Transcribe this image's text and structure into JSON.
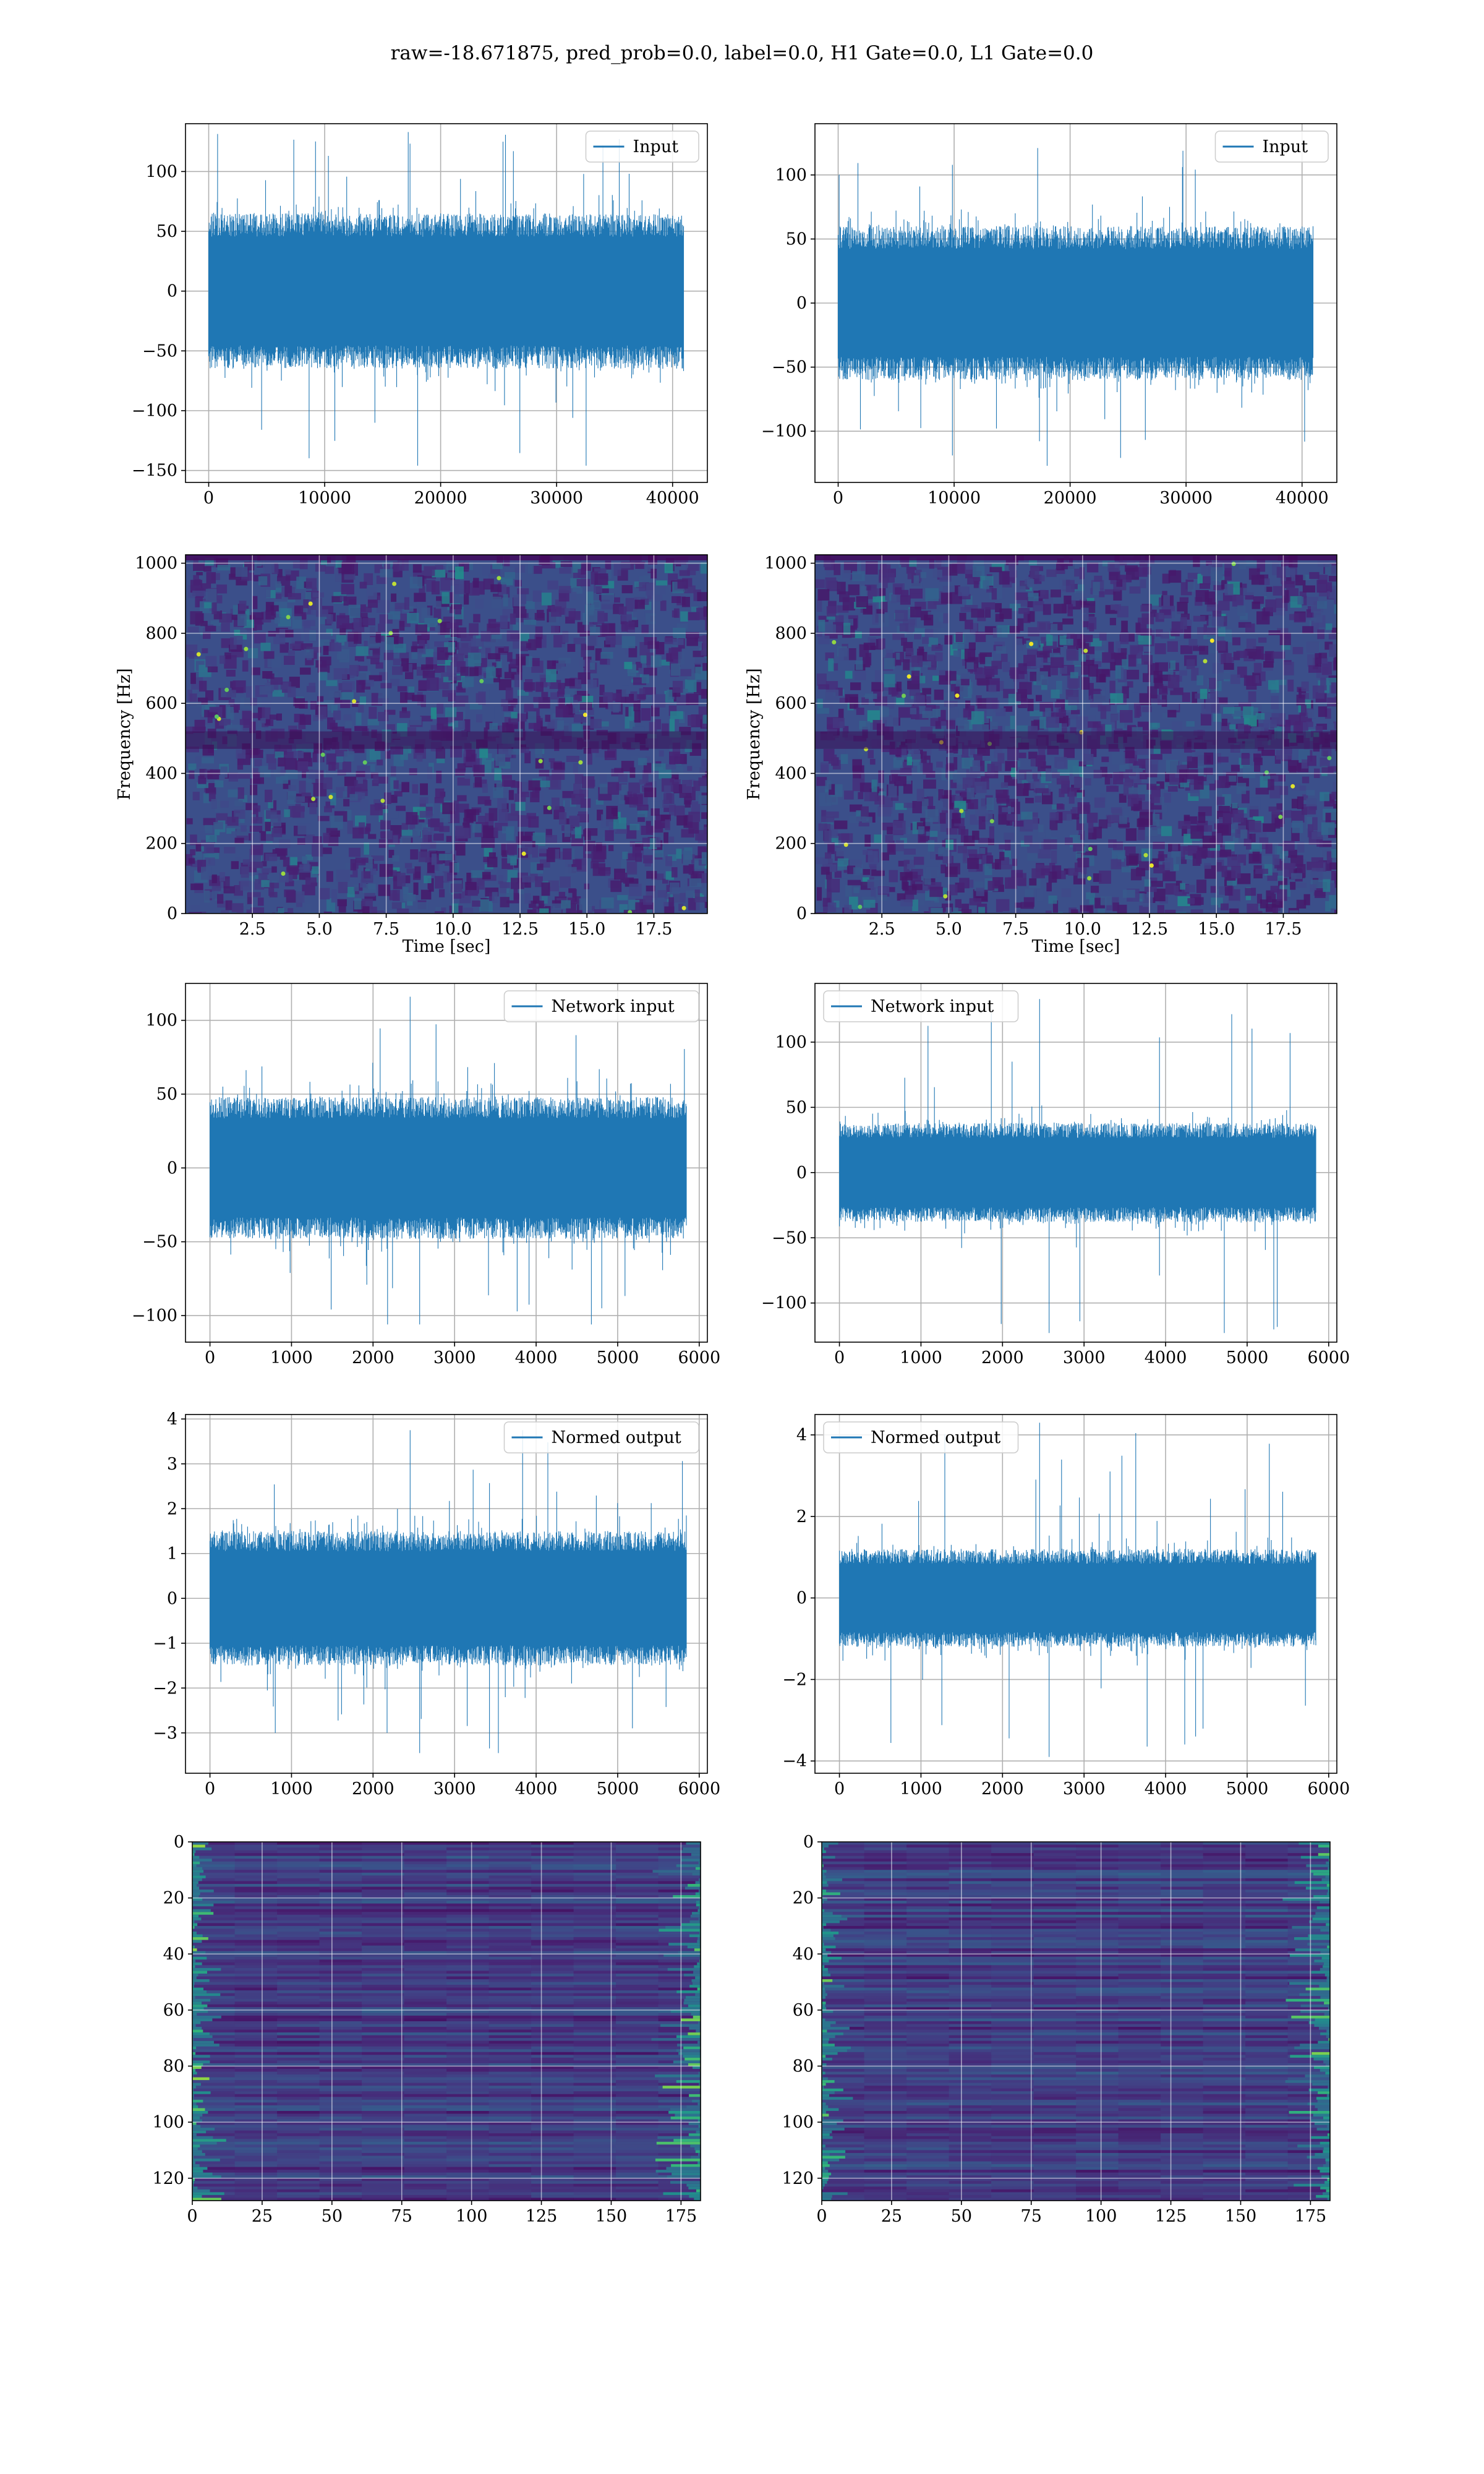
{
  "figure": {
    "title": "raw=-18.671875, pred_prob=0.0, label=0.0, H1 Gate=0.0, L1 Gate=0.0",
    "line_color": "#1f77b4",
    "colormap": "viridis"
  },
  "chart_data": [
    {
      "id": "h1-input",
      "type": "line",
      "series": [
        {
          "name": "Input",
          "color": "#1f77b4"
        }
      ],
      "legend": "top-right",
      "grid": true,
      "xlim": [
        -2000,
        43000
      ],
      "ylim": [
        -160,
        140
      ],
      "xticks": [
        0,
        10000,
        20000,
        30000,
        40000
      ],
      "yticks": [
        -150,
        -100,
        -50,
        0,
        50,
        100
      ],
      "yticklabels": [
        "−150",
        "−100",
        "−50",
        "0",
        "50",
        "100"
      ],
      "signal": {
        "n_samples": 40960,
        "x_end": 40960,
        "band": [
          -65,
          65
        ],
        "peak_max": 133,
        "trough_min": -146
      }
    },
    {
      "id": "l1-input",
      "type": "line",
      "series": [
        {
          "name": "Input",
          "color": "#1f77b4"
        }
      ],
      "legend": "top-right",
      "grid": true,
      "xlim": [
        -2000,
        43000
      ],
      "ylim": [
        -140,
        140
      ],
      "xticks": [
        0,
        10000,
        20000,
        30000,
        40000
      ],
      "yticks": [
        -100,
        -50,
        0,
        50,
        100
      ],
      "yticklabels": [
        "−100",
        "−50",
        "0",
        "50",
        "100"
      ],
      "signal": {
        "n_samples": 40960,
        "x_end": 40960,
        "band": [
          -60,
          60
        ],
        "peak_max": 121,
        "trough_min": -127
      }
    },
    {
      "id": "h1-spectrogram",
      "type": "heatmap",
      "xlabel": "Time [sec]",
      "ylabel": "Frequency [Hz]",
      "grid": true,
      "xlim": [
        0,
        19.5
      ],
      "ylim": [
        0,
        1024
      ],
      "xticks": [
        2.5,
        5.0,
        7.5,
        10.0,
        12.5,
        15.0,
        17.5
      ],
      "xticklabels": [
        "2.5",
        "5.0",
        "7.5",
        "10.0",
        "12.5",
        "15.0",
        "17.5"
      ],
      "yticks": [
        0,
        200,
        400,
        600,
        800,
        1000
      ],
      "yticklabels": [
        "0",
        "200",
        "400",
        "600",
        "800",
        "1000"
      ],
      "dark_band_hz": [
        470,
        520
      ]
    },
    {
      "id": "l1-spectrogram",
      "type": "heatmap",
      "xlabel": "Time [sec]",
      "ylabel": "Frequency [Hz]",
      "grid": true,
      "xlim": [
        0,
        19.5
      ],
      "ylim": [
        0,
        1024
      ],
      "xticks": [
        2.5,
        5.0,
        7.5,
        10.0,
        12.5,
        15.0,
        17.5
      ],
      "xticklabels": [
        "2.5",
        "5.0",
        "7.5",
        "10.0",
        "12.5",
        "15.0",
        "17.5"
      ],
      "yticks": [
        0,
        200,
        400,
        600,
        800,
        1000
      ],
      "yticklabels": [
        "0",
        "200",
        "400",
        "600",
        "800",
        "1000"
      ],
      "dark_band_hz": [
        470,
        520
      ]
    },
    {
      "id": "h1-network-input",
      "type": "line",
      "series": [
        {
          "name": "Network input",
          "color": "#1f77b4"
        }
      ],
      "legend": "top-right",
      "grid": true,
      "xlim": [
        -300,
        6100
      ],
      "ylim": [
        -118,
        125
      ],
      "xticks": [
        0,
        1000,
        2000,
        3000,
        4000,
        5000,
        6000
      ],
      "yticks": [
        -100,
        -50,
        0,
        50,
        100
      ],
      "yticklabels": [
        "−100",
        "−50",
        "0",
        "50",
        "100"
      ],
      "signal": {
        "n_samples": 5845,
        "x_end": 5845,
        "band": [
          -48,
          48
        ],
        "peak_max": 116,
        "trough_min": -106
      }
    },
    {
      "id": "l1-network-input",
      "type": "line",
      "series": [
        {
          "name": "Network input",
          "color": "#1f77b4"
        }
      ],
      "legend": "top-left",
      "grid": true,
      "xlim": [
        -300,
        6100
      ],
      "ylim": [
        -130,
        145
      ],
      "xticks": [
        0,
        1000,
        2000,
        3000,
        4000,
        5000,
        6000
      ],
      "yticks": [
        -100,
        -50,
        0,
        50,
        100
      ],
      "yticklabels": [
        "−100",
        "−50",
        "0",
        "50",
        "100"
      ],
      "signal": {
        "n_samples": 5845,
        "x_end": 5845,
        "band": [
          -38,
          38
        ],
        "peak_max": 133,
        "trough_min": -123
      }
    },
    {
      "id": "h1-normed-output",
      "type": "line",
      "series": [
        {
          "name": "Normed output",
          "color": "#1f77b4"
        }
      ],
      "legend": "top-right",
      "grid": true,
      "xlim": [
        -300,
        6100
      ],
      "ylim": [
        -3.9,
        4.1
      ],
      "xticks": [
        0,
        1000,
        2000,
        3000,
        4000,
        5000,
        6000
      ],
      "yticks": [
        -3,
        -2,
        -1,
        0,
        1,
        2,
        3,
        4
      ],
      "yticklabels": [
        "−3",
        "−2",
        "−1",
        "0",
        "1",
        "2",
        "3",
        "4"
      ],
      "signal": {
        "n_samples": 5845,
        "x_end": 5845,
        "band": [
          -1.5,
          1.5
        ],
        "peak_max": 3.75,
        "trough_min": -3.45
      }
    },
    {
      "id": "l1-normed-output",
      "type": "line",
      "series": [
        {
          "name": "Normed output",
          "color": "#1f77b4"
        }
      ],
      "legend": "top-left",
      "grid": true,
      "xlim": [
        -300,
        6100
      ],
      "ylim": [
        -4.3,
        4.5
      ],
      "xticks": [
        0,
        1000,
        2000,
        3000,
        4000,
        5000,
        6000
      ],
      "yticks": [
        -4,
        -2,
        0,
        2,
        4
      ],
      "yticklabels": [
        "−4",
        "−2",
        "0",
        "2",
        "4"
      ],
      "signal": {
        "n_samples": 5845,
        "x_end": 5845,
        "band": [
          -1.2,
          1.2
        ],
        "peak_max": 4.3,
        "trough_min": -3.9
      }
    },
    {
      "id": "h1-feature-map",
      "type": "heatmap",
      "grid": true,
      "xlim": [
        0,
        182
      ],
      "ylim": [
        128,
        0
      ],
      "xticks": [
        0,
        25,
        50,
        75,
        100,
        125,
        150,
        175
      ],
      "yticks": [
        0,
        20,
        40,
        60,
        80,
        100,
        120
      ],
      "rows": 128,
      "cols": 182
    },
    {
      "id": "l1-feature-map",
      "type": "heatmap",
      "grid": true,
      "xlim": [
        0,
        182
      ],
      "ylim": [
        128,
        0
      ],
      "xticks": [
        0,
        25,
        50,
        75,
        100,
        125,
        150,
        175
      ],
      "yticks": [
        0,
        20,
        40,
        60,
        80,
        100,
        120
      ],
      "rows": 128,
      "cols": 182
    }
  ]
}
